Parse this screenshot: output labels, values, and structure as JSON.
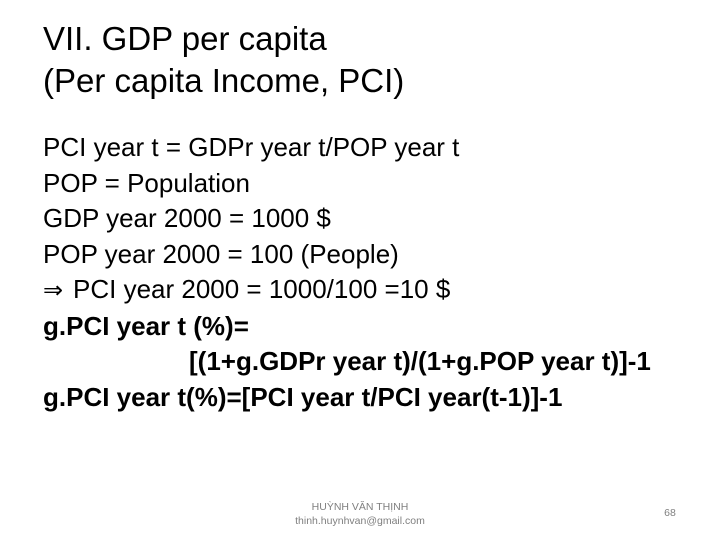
{
  "title": {
    "line1": "VII. GDP per capita",
    "line2": "(Per capita Income, PCI)"
  },
  "lines": {
    "l1": "PCI year t  = GDPr year t/POP year t",
    "l2": "POP = Population",
    "l3": "GDP year 2000 = 1000 $",
    "l4": "POP year 2000 = 100 (People)",
    "l5_symbol": "⇒",
    "l5": "PCI year 2000 = 1000/100 =10 $",
    "l6": "g.PCI year t (%)=",
    "l7": "[(1+g.GDPr year t)/(1+g.POP year t)]-1",
    "l8": "g.PCI year t(%)=[PCI year t/PCI year(t-1)]-1"
  },
  "footer": {
    "author": "HUỲNH VĂN THỊNH",
    "email": "thinh.huynhvan@gmail.com",
    "page_number": "68"
  }
}
